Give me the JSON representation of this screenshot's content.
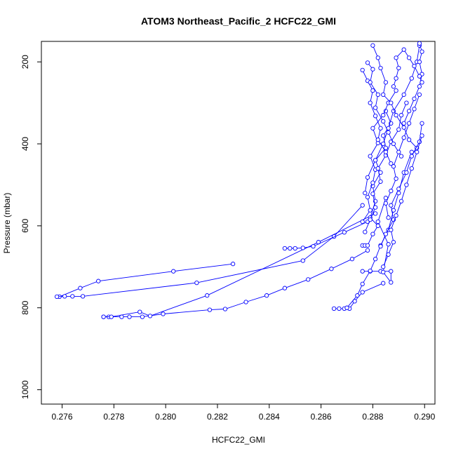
{
  "chart_data": {
    "type": "line",
    "title": "ATOM3 Northeast_Pacific_2 HCFC22_GMI",
    "xlabel": "HCFC22_GMI",
    "ylabel": "Pressure (mbar)",
    "xlim": [
      0.2752,
      0.2904
    ],
    "ylim": [
      1035,
      150
    ],
    "y_reversed": true,
    "x_ticks": [
      "0.276",
      "0.278",
      "0.280",
      "0.282",
      "0.284",
      "0.286",
      "0.288",
      "0.290"
    ],
    "y_ticks": [
      "200",
      "400",
      "600",
      "800",
      "1000"
    ],
    "line_color": "#0000ff",
    "marker": "open-circle",
    "grid": false,
    "legend": "none",
    "series": [
      {
        "x": [
          0.2759,
          0.2767,
          0.2774,
          0.2803,
          0.2826
        ],
        "y": [
          773,
          752,
          735,
          711,
          693
        ]
      },
      {
        "x": [
          0.2758,
          0.2761,
          0.2764,
          0.2768,
          0.2812,
          0.2853,
          0.2865,
          0.2876
        ],
        "y": [
          773,
          772,
          772,
          772,
          739,
          685,
          626,
          550
        ]
      },
      {
        "x": [
          0.2776,
          0.2778,
          0.2783,
          0.2786,
          0.2791,
          0.2799,
          0.2817,
          0.2823,
          0.2831,
          0.2839,
          0.2846,
          0.2855,
          0.2864,
          0.2872,
          0.2878
        ],
        "y": [
          822,
          822,
          822,
          822,
          822,
          815,
          805,
          803,
          786,
          770,
          752,
          731,
          705,
          681,
          660
        ]
      },
      {
        "x": [
          0.2776,
          0.2779,
          0.279,
          0.2794,
          0.2816,
          0.2859,
          0.2881
        ],
        "y": [
          822,
          822,
          810,
          820,
          770,
          640,
          570
        ]
      },
      {
        "x": [
          0.2846,
          0.2848,
          0.285,
          0.2853,
          0.2857,
          0.2869,
          0.2878
        ],
        "y": [
          655,
          655,
          655,
          654,
          650,
          616,
          590
        ]
      },
      {
        "x": [
          0.2865,
          0.2867,
          0.2869,
          0.2871,
          0.2873,
          0.2876,
          0.2884
        ],
        "y": [
          802,
          802,
          802,
          802,
          784,
          762,
          740
        ]
      },
      {
        "x": [
          0.2876,
          0.2879,
          0.2883,
          0.2887,
          0.2887,
          0.2884,
          0.2886,
          0.2882,
          0.2885
        ],
        "y": [
          711,
          711,
          711,
          711,
          738,
          713,
          645,
          590,
          532
        ]
      },
      {
        "x": [
          0.2876,
          0.2877,
          0.2878,
          0.288,
          0.2882,
          0.2879,
          0.2881,
          0.288,
          0.2883,
          0.2881,
          0.2885,
          0.2884,
          0.2887,
          0.2885
        ],
        "y": [
          648,
          648,
          648,
          620,
          600,
          580,
          540,
          503,
          470,
          440,
          410,
          380,
          350,
          320
        ]
      },
      {
        "x": [
          0.287,
          0.2874,
          0.2876,
          0.2879,
          0.2881,
          0.2883,
          0.2886,
          0.2888,
          0.289,
          0.2892,
          0.2895
        ],
        "y": [
          800,
          770,
          742,
          710,
          681,
          648,
          610,
          562,
          520,
          470,
          420
        ]
      },
      {
        "x": [
          0.2877,
          0.2878,
          0.2881,
          0.2884,
          0.2886,
          0.2888,
          0.2892,
          0.2895,
          0.2897,
          0.2898
        ],
        "y": [
          520,
          482,
          440,
          400,
          362,
          320,
          280,
          240,
          200,
          160
        ]
      },
      {
        "x": [
          0.2876,
          0.2879,
          0.2878,
          0.288,
          0.2881,
          0.2879,
          0.2882,
          0.288,
          0.2884,
          0.2886,
          0.2889
        ],
        "y": [
          590,
          562,
          530,
          495,
          463,
          430,
          398,
          362,
          330,
          300,
          270
        ]
      },
      {
        "x": [
          0.2877,
          0.2879,
          0.2881,
          0.288,
          0.2883,
          0.2882,
          0.2885,
          0.2887,
          0.289,
          0.2891,
          0.2893
        ],
        "y": [
          615,
          585,
          555,
          522,
          492,
          460,
          428,
          395,
          365,
          330,
          300
        ]
      },
      {
        "x": [
          0.2876,
          0.2878,
          0.288,
          0.2879,
          0.2881,
          0.2883,
          0.2882,
          0.2885,
          0.2887
        ],
        "y": [
          220,
          246,
          270,
          300,
          332,
          362,
          390,
          420,
          448
        ]
      },
      {
        "x": [
          0.2878,
          0.288,
          0.2879,
          0.2882,
          0.2881,
          0.2884,
          0.2886,
          0.2888,
          0.2891
        ],
        "y": [
          202,
          218,
          250,
          280,
          312,
          345,
          372,
          400,
          430
        ]
      },
      {
        "x": [
          0.288,
          0.2882,
          0.2883,
          0.2885,
          0.2884,
          0.2887,
          0.2889,
          0.2892,
          0.2894,
          0.2897
        ],
        "y": [
          160,
          190,
          215,
          250,
          280,
          300,
          330,
          360,
          390,
          410
        ]
      },
      {
        "x": [
          0.2883,
          0.2885,
          0.2888,
          0.2887,
          0.289,
          0.2893,
          0.2895,
          0.2898,
          0.2899
        ],
        "y": [
          650,
          620,
          585,
          550,
          510,
          470,
          430,
          395,
          350
        ]
      },
      {
        "x": [
          0.2884,
          0.2886,
          0.2888,
          0.2887,
          0.2889,
          0.2891,
          0.2893,
          0.2895,
          0.2897,
          0.2899
        ],
        "y": [
          700,
          670,
          640,
          610,
          575,
          540,
          500,
          460,
          420,
          380
        ]
      },
      {
        "x": [
          0.2886,
          0.2885,
          0.2887,
          0.2889,
          0.2888,
          0.289,
          0.2892,
          0.2894,
          0.2896,
          0.2898
        ],
        "y": [
          580,
          545,
          515,
          485,
          455,
          420,
          385,
          350,
          315,
          280
        ]
      },
      {
        "x": [
          0.2892,
          0.2894,
          0.2896,
          0.2898,
          0.2899,
          0.2898,
          0.2899,
          0.2898
        ],
        "y": [
          350,
          320,
          290,
          260,
          230,
          200,
          175,
          155
        ]
      },
      {
        "x": [
          0.2888,
          0.2889,
          0.289,
          0.2889,
          0.2892,
          0.2894,
          0.2896,
          0.2898,
          0.2899
        ],
        "y": [
          260,
          240,
          215,
          190,
          170,
          190,
          210,
          235,
          250
        ]
      }
    ]
  }
}
